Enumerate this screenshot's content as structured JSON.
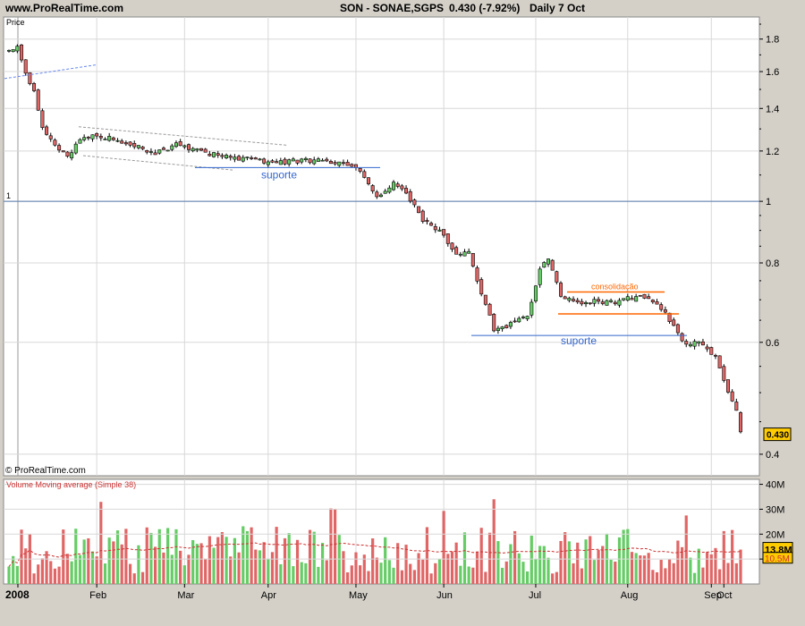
{
  "header": {
    "site": "www.ProRealTime.com",
    "instrument": "SON - SONAE,SGPS",
    "price_change": "0.430 (-7.92%)",
    "period": "Daily  7 Oct"
  },
  "price_panel": {
    "label": "Price",
    "copyright": "© ProRealTime.com",
    "last_price_tag": "0.430",
    "reference_line_label": "1",
    "annotations": {
      "support_1": "suporte",
      "consolidation": "consolidação",
      "support_2": "suporte"
    }
  },
  "volume_panel": {
    "label": "Volume Moving average (Simple 38)",
    "last_value_tag": "13.8M",
    "ma_tag": "10.5M"
  },
  "colors": {
    "up": "#66cc66",
    "down": "#e06666",
    "candle_outline": "#000000",
    "support": "#3366cc",
    "consolidation": "#ff6600",
    "trendline": "#6688ee",
    "grid": "#d8d8d8",
    "price_tag": "#ffcc00",
    "volume_ma": "#cc3333"
  },
  "chart_data": [
    {
      "type": "candlestick",
      "title": "SON - SONAE,SGPS",
      "scale": "log",
      "ylabel": "Price",
      "ylim": [
        0.37,
        1.95
      ],
      "yticks": [
        0.4,
        0.6,
        0.8,
        1,
        1.2,
        1.4,
        1.6,
        1.8
      ],
      "xticks": [
        "2008",
        "Feb",
        "Mar",
        "Apr",
        "May",
        "Jun",
        "Jul",
        "Aug",
        "Sep",
        "Oct"
      ],
      "grid": true,
      "last_price": 0.43,
      "change_pct": -7.92,
      "reference_level": 1.0,
      "support_levels": [
        1.13,
        0.615
      ],
      "consolidation_range": [
        0.665,
        0.72
      ],
      "close_path": [
        [
          0,
          1.72
        ],
        [
          2,
          1.76
        ],
        [
          4,
          1.58
        ],
        [
          6,
          1.5
        ],
        [
          8,
          1.3
        ],
        [
          10,
          1.26
        ],
        [
          12,
          1.2
        ],
        [
          14,
          1.18
        ],
        [
          16,
          1.22
        ],
        [
          18,
          1.26
        ],
        [
          20,
          1.28
        ],
        [
          25,
          1.25
        ],
        [
          30,
          1.22
        ],
        [
          35,
          1.19
        ],
        [
          40,
          1.23
        ],
        [
          45,
          1.2
        ],
        [
          50,
          1.18
        ],
        [
          55,
          1.17
        ],
        [
          60,
          1.16
        ],
        [
          65,
          1.15
        ],
        [
          70,
          1.16
        ],
        [
          75,
          1.16
        ],
        [
          80,
          1.15
        ],
        [
          85,
          1.1
        ],
        [
          88,
          1.01
        ],
        [
          92,
          1.07
        ],
        [
          95,
          1.03
        ],
        [
          99,
          0.93
        ],
        [
          103,
          0.9
        ],
        [
          107,
          0.82
        ],
        [
          110,
          0.84
        ],
        [
          113,
          0.71
        ],
        [
          116,
          0.63
        ],
        [
          120,
          0.64
        ],
        [
          124,
          0.66
        ],
        [
          127,
          0.78
        ],
        [
          129,
          0.81
        ],
        [
          132,
          0.71
        ],
        [
          136,
          0.69
        ],
        [
          140,
          0.7
        ],
        [
          145,
          0.69
        ],
        [
          150,
          0.71
        ],
        [
          155,
          0.69
        ],
        [
          158,
          0.65
        ],
        [
          161,
          0.6
        ],
        [
          165,
          0.6
        ],
        [
          169,
          0.57
        ],
        [
          172,
          0.5
        ],
        [
          174,
          0.47
        ],
        [
          175,
          0.43
        ]
      ]
    },
    {
      "type": "bar",
      "title": "Volume Moving average (Simple 38)",
      "ylim": [
        0,
        42000000
      ],
      "yticks": [
        10000000,
        20000000,
        30000000,
        40000000
      ],
      "ytick_labels": [
        "10M",
        "20M",
        "30M",
        "40M"
      ],
      "last_volume": 13800000,
      "moving_average": 10500000,
      "ma_period": 38,
      "xticks": [
        "2008",
        "Feb",
        "Mar",
        "Apr",
        "May",
        "Jun",
        "Jul",
        "Aug",
        "Sep",
        "Oct"
      ]
    }
  ]
}
